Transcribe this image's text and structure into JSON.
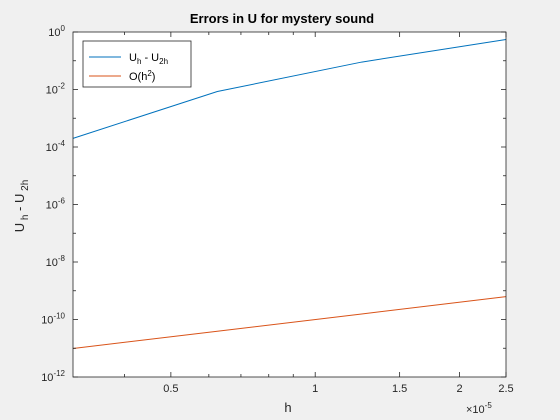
{
  "chart_data": {
    "type": "line",
    "title": "Errors in U for mystery sound",
    "xlabel": "h",
    "ylabel": "U_h - U_2h",
    "x_scale": "log",
    "y_scale": "log",
    "x_exponent_label": "×10^-5",
    "xlim": [
      3.125e-06,
      2.5e-05
    ],
    "ylim": [
      1e-12,
      1
    ],
    "x_ticks": [
      5e-06,
      1e-05,
      1.5e-05,
      2e-05,
      2.5e-05
    ],
    "x_tick_labels": [
      "0.5",
      "1",
      "1.5",
      "2",
      "2.5"
    ],
    "y_ticks": [
      1e-12,
      1e-10,
      1e-08,
      1e-06,
      0.0001,
      0.01,
      1
    ],
    "y_tick_labels": [
      {
        "base": "10",
        "exp": "-12"
      },
      {
        "base": "10",
        "exp": "-10"
      },
      {
        "base": "10",
        "exp": "-8"
      },
      {
        "base": "10",
        "exp": "-6"
      },
      {
        "base": "10",
        "exp": "-4"
      },
      {
        "base": "10",
        "exp": "-2"
      },
      {
        "base": "10",
        "exp": "0"
      }
    ],
    "grid": false,
    "legend_position": "top-left",
    "series": [
      {
        "name": "U_h - U_2h",
        "color": "#0072bd",
        "x": [
          3.125e-06,
          6.25e-06,
          1.25e-05,
          2.5e-05
        ],
        "y": [
          0.0002,
          0.0085,
          0.09,
          0.55
        ]
      },
      {
        "name": "O(h^2)",
        "color": "#d95319",
        "x": [
          3.125e-06,
          6.25e-06,
          1.25e-05,
          2.5e-05
        ],
        "y": [
          9.8e-12,
          3.9e-11,
          1.56e-10,
          6.25e-10
        ]
      }
    ]
  }
}
